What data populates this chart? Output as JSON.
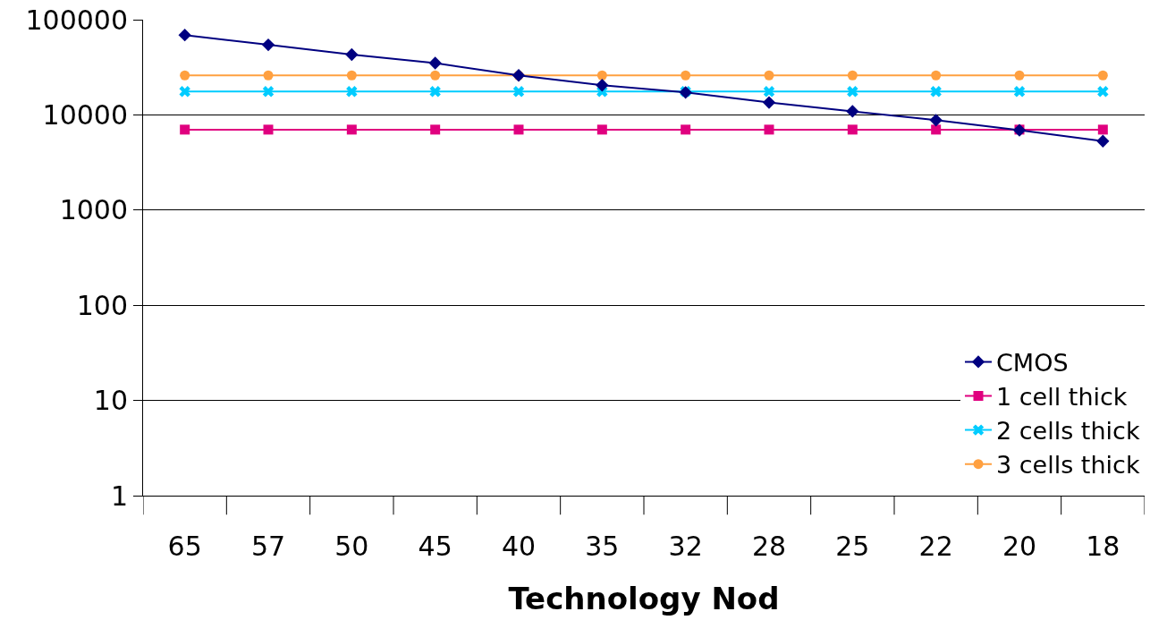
{
  "chart_data": {
    "type": "line",
    "xlabel": "Technology Nod",
    "categories": [
      "65",
      "57",
      "50",
      "45",
      "40",
      "35",
      "32",
      "28",
      "25",
      "22",
      "20",
      "18"
    ],
    "series": [
      {
        "name": "CMOS",
        "color": "#000080",
        "marker": "diamond",
        "values": [
          69000,
          54500,
          43000,
          35000,
          26000,
          20500,
          17200,
          13500,
          10900,
          8800,
          6900,
          5300
        ]
      },
      {
        "name": "1 cell thick",
        "color": "#e0007f",
        "marker": "square",
        "values": [
          7000,
          7000,
          7000,
          7000,
          7000,
          7000,
          7000,
          7000,
          7000,
          7000,
          7000,
          7000
        ]
      },
      {
        "name": "2 cells thick",
        "color": "#00ccff",
        "marker": "cross",
        "values": [
          17600,
          17600,
          17600,
          17600,
          17600,
          17600,
          17600,
          17600,
          17600,
          17600,
          17600,
          17600
        ]
      },
      {
        "name": "3 cells thick",
        "color": "#ffa040",
        "marker": "circle",
        "values": [
          26000,
          26000,
          26000,
          26000,
          26000,
          26000,
          26000,
          26000,
          26000,
          26000,
          26000,
          26000
        ]
      }
    ],
    "log": "y",
    "ylim": [
      1,
      100000
    ],
    "yticks": [
      1,
      10,
      100,
      1000,
      10000,
      100000
    ],
    "grid": "y",
    "legend": "right"
  }
}
